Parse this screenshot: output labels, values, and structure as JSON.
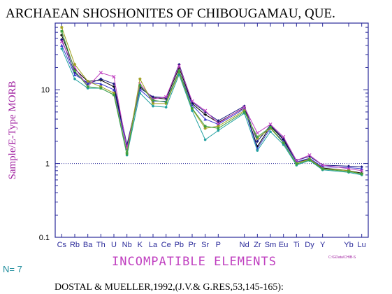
{
  "chart_data": {
    "type": "line",
    "title": "ARCHAEAN SHOSHONITES OF CHIBOUGAMAU, QUE.",
    "xlabel": "INCOMPATIBLE ELEMENTS",
    "ylabel": "Sample/E-Type MORB",
    "yscale": "log",
    "ylim": [
      0.1,
      80
    ],
    "yticks": [
      {
        "value": 0.1,
        "label": "0.1"
      },
      {
        "value": 1,
        "label": "1"
      },
      {
        "value": 10,
        "label": "10"
      }
    ],
    "reference_line": {
      "y": 1,
      "style": "dotted"
    },
    "grid": false,
    "categories": [
      "Cs",
      "Rb",
      "Ba",
      "Th",
      "U",
      "Nb",
      "K",
      "La",
      "Ce",
      "Pb",
      "Pr",
      "Sr",
      "P",
      "Nd",
      "Zr",
      "Sm",
      "Eu",
      "Ti",
      "Dy",
      "Y",
      "Yb",
      "Lu"
    ],
    "categories_shown": [
      {
        "index": 0,
        "label": "Cs"
      },
      {
        "index": 1,
        "label": "Rb"
      },
      {
        "index": 2,
        "label": "Ba"
      },
      {
        "index": 3,
        "label": "Th"
      },
      {
        "index": 4,
        "label": "U"
      },
      {
        "index": 5,
        "label": "Nb"
      },
      {
        "index": 6,
        "label": "K"
      },
      {
        "index": 7,
        "label": "La"
      },
      {
        "index": 8,
        "label": "Ce"
      },
      {
        "index": 9,
        "label": "Pb"
      },
      {
        "index": 10,
        "label": "Pr"
      },
      {
        "index": 11,
        "label": "Sr"
      },
      {
        "index": 12,
        "label": "P"
      },
      {
        "index": 14,
        "label": "Nd"
      },
      {
        "index": 15,
        "label": "Zr"
      },
      {
        "index": 16,
        "label": "Sm"
      },
      {
        "index": 17,
        "label": "Eu"
      },
      {
        "index": 18,
        "label": "Ti"
      },
      {
        "index": 19,
        "label": "Dy"
      },
      {
        "index": 20,
        "label": "Y"
      },
      {
        "index": 22,
        "label": "Yb"
      },
      {
        "index": 23,
        "label": "Lu"
      }
    ],
    "x_positions": [
      0,
      1,
      2,
      3,
      4,
      5,
      6,
      7,
      8,
      9,
      10,
      11,
      12,
      14,
      15,
      16,
      17,
      18,
      19,
      20,
      22,
      23
    ],
    "x_range": [
      -0.5,
      23.5
    ],
    "series": [
      {
        "color": "#000000",
        "marker": "plus",
        "values": [
          55,
          19,
          13,
          13.5,
          11,
          1.7,
          11,
          7.8,
          7.5,
          20,
          6.5,
          4.6,
          3.6,
          5.7,
          1.7,
          3.2,
          2.1,
          1.05,
          1.15,
          0.87,
          0.8,
          0.74
        ]
      },
      {
        "color": "#1a1a80",
        "marker": "diamond",
        "values": [
          48,
          17,
          12,
          14,
          12,
          1.8,
          10.5,
          8,
          7.8,
          22,
          6.8,
          5,
          3.8,
          6,
          2,
          3.3,
          2.2,
          1.1,
          1.25,
          0.95,
          0.92,
          0.9
        ]
      },
      {
        "color": "#3a3ad0",
        "marker": "triangle",
        "values": [
          40,
          16,
          12.5,
          12,
          10,
          1.6,
          10,
          7,
          7,
          18,
          6.2,
          4,
          3.4,
          5.5,
          1.6,
          3,
          2,
          1.05,
          1.18,
          0.9,
          0.88,
          0.85
        ]
      },
      {
        "color": "#c040c0",
        "marker": "x",
        "values": [
          45,
          20,
          11,
          17,
          15,
          1.6,
          12,
          7.5,
          8,
          21,
          7,
          5.2,
          3.5,
          5.8,
          2.6,
          3.4,
          2.3,
          1.1,
          1.3,
          0.95,
          0.85,
          0.8
        ]
      },
      {
        "color": "#a0a020",
        "marker": "star",
        "values": [
          70,
          22,
          13,
          11,
          9,
          1.4,
          14,
          6.5,
          6.5,
          17,
          5.5,
          3,
          3.2,
          5.2,
          2.2,
          3,
          1.9,
          1,
          1.15,
          0.85,
          0.8,
          0.72
        ]
      },
      {
        "color": "#20a0a0",
        "marker": "circle",
        "values": [
          36,
          14,
          10.5,
          10.5,
          8.5,
          1.3,
          9,
          6,
          5.8,
          16,
          5.2,
          2.1,
          2.8,
          4.8,
          1.5,
          2.7,
          1.8,
          0.95,
          1.1,
          0.82,
          0.76,
          0.7
        ]
      },
      {
        "color": "#40a040",
        "marker": "square",
        "values": [
          62,
          18,
          11,
          10.5,
          8.5,
          1.35,
          11.5,
          7.2,
          6.8,
          18,
          5.6,
          3.2,
          3,
          5,
          2.3,
          3.1,
          1.9,
          0.98,
          1.12,
          0.84,
          0.78,
          0.72
        ]
      }
    ]
  },
  "n_label": "N= 7",
  "filename": "C:\\GData\\CHIB-S",
  "footer": "DOSTAL  &  MUELLER,1992,(J.V.&  G.RES,53,145-165):",
  "colors": {
    "axis": "#2a2a9a",
    "ylabel": "#a020a0",
    "xlabel": "#c040c0",
    "n_label": "#1a8a9a",
    "filename": "#a020a0"
  }
}
